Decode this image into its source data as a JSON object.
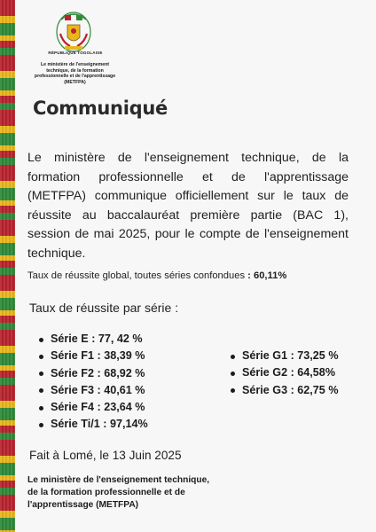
{
  "header": {
    "republic": "RÉPUBLIQUE TOGOLAISE",
    "ministry_lines": [
      "Le ministère de l'enseignement",
      "technique, de la formation",
      "professionnelle et de l'apprentissage",
      "(METFPA)"
    ]
  },
  "title": "Communiqué",
  "intro": "Le ministère de l'enseignement technique, de la formation professionnelle et de l'apprentissage (METFPA) communique officiellement sur le taux de réussite au baccalauréat première partie (BAC 1), session de mai 2025, pour le compte de l'enseignement technique.",
  "global_rate": {
    "label": "Taux de réussite global",
    "rest": ", toutes séries confondues",
    "value": " : 60,11%"
  },
  "per_serie_heading": "Taux de réussite par série :",
  "series_left": [
    "Série E : 77, 42 %",
    "Série F1 : 38,39 %",
    "Série F2 : 68,92 %",
    "Série F3 : 40,61 %",
    "Série F4 : 23,64 %",
    "Série Ti/1 : 97,14%"
  ],
  "series_right": [
    "Série G1 : 73,25 %",
    "Série G2 : 64,58%",
    "Série G3 : 62,75 %"
  ],
  "done_at": "Fait à Lomé, le 13 Juin 2025",
  "signature_lines": [
    "Le ministère de l'enseignement technique,",
    "de la formation professionnelle et de",
    "l'apprentissage (METFPA)"
  ],
  "colors": {
    "band_red": "#b8232e",
    "band_yellow": "#e9b61c",
    "band_green": "#2f8a3a"
  }
}
